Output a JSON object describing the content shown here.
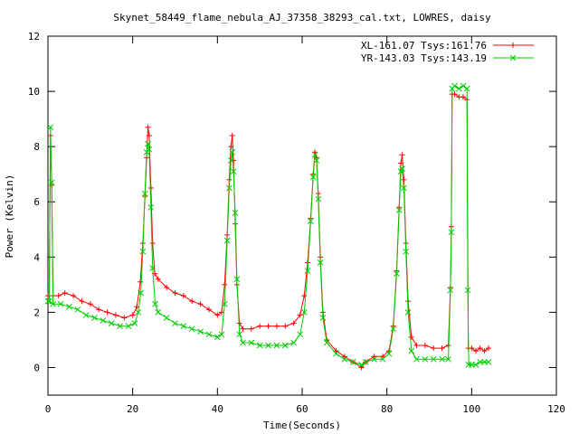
{
  "chart_data": {
    "type": "line",
    "title": "Skynet_58449_flame_nebula_AJ_37358_38293_cal.txt, LOWRES, daisy",
    "xlabel": "Time(Seconds)",
    "ylabel": "Power (Kelvin)",
    "xlim": [
      0,
      120
    ],
    "ylim": [
      -1,
      12
    ],
    "xticks": [
      "0",
      "20",
      "40",
      "60",
      "80",
      "100",
      "120"
    ],
    "yticks": [
      "0",
      "2",
      "4",
      "6",
      "8",
      "10",
      "12"
    ],
    "grid": false,
    "legend_position": "top-right",
    "series": [
      {
        "name": "XL-161.07 Tsys:161.76",
        "color": "#ff0000",
        "marker": "+",
        "points": [
          [
            0.0,
            2.6
          ],
          [
            0.3,
            2.6
          ],
          [
            0.6,
            8.4
          ],
          [
            0.9,
            6.6
          ],
          [
            1.2,
            2.6
          ],
          [
            2.5,
            2.6
          ],
          [
            4.0,
            2.7
          ],
          [
            6.0,
            2.6
          ],
          [
            8.0,
            2.4
          ],
          [
            10.0,
            2.3
          ],
          [
            12.0,
            2.1
          ],
          [
            14.0,
            2.0
          ],
          [
            16.0,
            1.9
          ],
          [
            18.0,
            1.8
          ],
          [
            20.0,
            1.9
          ],
          [
            21.0,
            2.2
          ],
          [
            21.8,
            3.1
          ],
          [
            22.4,
            4.5
          ],
          [
            22.9,
            6.2
          ],
          [
            23.3,
            7.6
          ],
          [
            23.6,
            8.7
          ],
          [
            23.9,
            8.4
          ],
          [
            24.3,
            6.5
          ],
          [
            24.7,
            4.5
          ],
          [
            25.2,
            3.4
          ],
          [
            26.0,
            3.2
          ],
          [
            28.0,
            2.9
          ],
          [
            30.0,
            2.7
          ],
          [
            32.0,
            2.6
          ],
          [
            34.0,
            2.4
          ],
          [
            36.0,
            2.3
          ],
          [
            38.0,
            2.1
          ],
          [
            40.0,
            1.9
          ],
          [
            41.0,
            2.0
          ],
          [
            41.7,
            3.0
          ],
          [
            42.3,
            4.8
          ],
          [
            42.8,
            6.8
          ],
          [
            43.2,
            8.0
          ],
          [
            43.5,
            8.4
          ],
          [
            43.8,
            7.5
          ],
          [
            44.2,
            5.2
          ],
          [
            44.6,
            3.0
          ],
          [
            45.2,
            1.6
          ],
          [
            46.0,
            1.4
          ],
          [
            48.0,
            1.4
          ],
          [
            50.0,
            1.5
          ],
          [
            52.0,
            1.5
          ],
          [
            54.0,
            1.5
          ],
          [
            56.0,
            1.5
          ],
          [
            58.0,
            1.6
          ],
          [
            59.5,
            1.9
          ],
          [
            60.5,
            2.6
          ],
          [
            61.3,
            3.8
          ],
          [
            62.0,
            5.4
          ],
          [
            62.6,
            7.0
          ],
          [
            63.0,
            7.8
          ],
          [
            63.4,
            7.6
          ],
          [
            63.8,
            6.3
          ],
          [
            64.3,
            4.0
          ],
          [
            64.9,
            2.0
          ],
          [
            65.8,
            1.0
          ],
          [
            68.0,
            0.6
          ],
          [
            70.0,
            0.4
          ],
          [
            72.0,
            0.2
          ],
          [
            74.0,
            0.0
          ],
          [
            75.0,
            0.2
          ],
          [
            77.0,
            0.4
          ],
          [
            79.0,
            0.4
          ],
          [
            80.5,
            0.6
          ],
          [
            81.5,
            1.5
          ],
          [
            82.3,
            3.5
          ],
          [
            82.9,
            5.8
          ],
          [
            83.3,
            7.4
          ],
          [
            83.6,
            7.7
          ],
          [
            84.0,
            6.8
          ],
          [
            84.5,
            4.5
          ],
          [
            85.0,
            2.4
          ],
          [
            85.8,
            1.1
          ],
          [
            87.0,
            0.8
          ],
          [
            89.0,
            0.8
          ],
          [
            91.0,
            0.7
          ],
          [
            93.0,
            0.7
          ],
          [
            94.5,
            0.8
          ],
          [
            95.0,
            2.9
          ],
          [
            95.2,
            5.1
          ],
          [
            95.4,
            9.9
          ],
          [
            96.0,
            9.9
          ],
          [
            97.0,
            9.8
          ],
          [
            98.0,
            9.8
          ],
          [
            98.9,
            9.7
          ],
          [
            99.2,
            0.7
          ],
          [
            100.0,
            0.7
          ],
          [
            101.0,
            0.6
          ],
          [
            102.0,
            0.7
          ],
          [
            103.0,
            0.6
          ],
          [
            104.0,
            0.7
          ]
        ]
      },
      {
        "name": "YR-143.03 Tsys:143.19",
        "color": "#00cc00",
        "marker": "x",
        "points": [
          [
            0.0,
            2.4
          ],
          [
            0.3,
            2.4
          ],
          [
            0.6,
            8.7
          ],
          [
            0.9,
            6.7
          ],
          [
            1.2,
            2.3
          ],
          [
            3.0,
            2.3
          ],
          [
            5.0,
            2.2
          ],
          [
            7.0,
            2.1
          ],
          [
            9.0,
            1.9
          ],
          [
            11.0,
            1.8
          ],
          [
            13.0,
            1.7
          ],
          [
            15.0,
            1.6
          ],
          [
            17.0,
            1.5
          ],
          [
            19.0,
            1.5
          ],
          [
            20.5,
            1.6
          ],
          [
            21.3,
            2.0
          ],
          [
            21.9,
            2.7
          ],
          [
            22.4,
            4.2
          ],
          [
            22.9,
            6.3
          ],
          [
            23.3,
            7.8
          ],
          [
            23.6,
            8.1
          ],
          [
            23.9,
            7.9
          ],
          [
            24.3,
            5.8
          ],
          [
            24.7,
            3.6
          ],
          [
            25.3,
            2.3
          ],
          [
            26.0,
            2.0
          ],
          [
            28.0,
            1.8
          ],
          [
            30.0,
            1.6
          ],
          [
            32.0,
            1.5
          ],
          [
            34.0,
            1.4
          ],
          [
            36.0,
            1.3
          ],
          [
            38.0,
            1.2
          ],
          [
            40.0,
            1.1
          ],
          [
            41.0,
            1.2
          ],
          [
            41.7,
            2.3
          ],
          [
            42.3,
            4.6
          ],
          [
            42.8,
            6.5
          ],
          [
            43.2,
            7.5
          ],
          [
            43.5,
            7.8
          ],
          [
            43.8,
            7.1
          ],
          [
            44.2,
            5.6
          ],
          [
            44.6,
            3.2
          ],
          [
            45.2,
            1.2
          ],
          [
            46.0,
            0.9
          ],
          [
            48.0,
            0.9
          ],
          [
            50.0,
            0.8
          ],
          [
            52.0,
            0.8
          ],
          [
            54.0,
            0.8
          ],
          [
            56.0,
            0.8
          ],
          [
            58.0,
            0.9
          ],
          [
            59.5,
            1.2
          ],
          [
            60.5,
            2.0
          ],
          [
            61.3,
            3.5
          ],
          [
            62.0,
            5.3
          ],
          [
            62.6,
            6.9
          ],
          [
            63.0,
            7.7
          ],
          [
            63.4,
            7.5
          ],
          [
            63.8,
            6.1
          ],
          [
            64.3,
            3.8
          ],
          [
            64.9,
            1.8
          ],
          [
            65.8,
            0.9
          ],
          [
            68.0,
            0.5
          ],
          [
            70.0,
            0.3
          ],
          [
            72.0,
            0.2
          ],
          [
            74.0,
            0.1
          ],
          [
            75.0,
            0.2
          ],
          [
            77.0,
            0.3
          ],
          [
            79.0,
            0.3
          ],
          [
            80.5,
            0.5
          ],
          [
            81.5,
            1.4
          ],
          [
            82.3,
            3.4
          ],
          [
            82.9,
            5.7
          ],
          [
            83.3,
            7.1
          ],
          [
            83.6,
            7.2
          ],
          [
            84.0,
            6.5
          ],
          [
            84.5,
            4.2
          ],
          [
            85.0,
            2.0
          ],
          [
            85.8,
            0.6
          ],
          [
            87.0,
            0.3
          ],
          [
            89.0,
            0.3
          ],
          [
            91.0,
            0.3
          ],
          [
            93.0,
            0.3
          ],
          [
            94.5,
            0.3
          ],
          [
            95.0,
            2.8
          ],
          [
            95.2,
            4.9
          ],
          [
            95.4,
            10.1
          ],
          [
            96.0,
            10.2
          ],
          [
            97.0,
            10.1
          ],
          [
            98.0,
            10.2
          ],
          [
            98.9,
            10.1
          ],
          [
            99.1,
            2.8
          ],
          [
            99.3,
            0.1
          ],
          [
            100.0,
            0.1
          ],
          [
            101.0,
            0.1
          ],
          [
            102.0,
            0.2
          ],
          [
            103.0,
            0.2
          ],
          [
            104.0,
            0.2
          ]
        ]
      }
    ]
  }
}
